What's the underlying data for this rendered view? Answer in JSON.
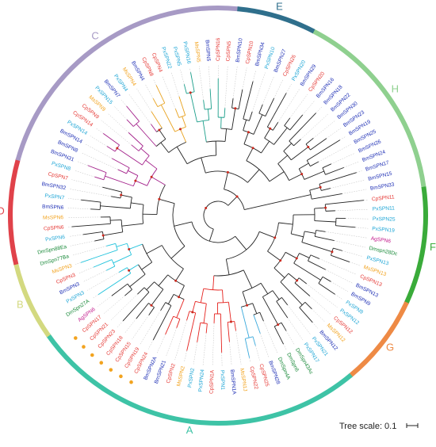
{
  "colors": {
    "Cp": "#e53935",
    "Bm": "#1e2fb5",
    "Ms": "#f2a31f",
    "Px": "#1fa6d6",
    "Dm": "#1a8a3a",
    "Ag": "#c2188a",
    "branch_black": "#222222",
    "branch_teal": "#1a9e8a",
    "branch_orange": "#e8a21f",
    "branch_magenta": "#a3208a",
    "branch_cyan": "#21c3dc",
    "branch_red": "#e5221e",
    "branch_sky": "#3aa9dc",
    "node_marker": "#cc2a1f",
    "guide_line": "#bcbcbc",
    "highlight_dot": "#f2a31f"
  },
  "tree": {
    "leaves": [
      {
        "label": "CpSPN11",
        "sp": "Cp"
      },
      {
        "label": "PxSPN11",
        "sp": "Px"
      },
      {
        "label": "PxSPN25",
        "sp": "Px"
      },
      {
        "label": "PxSPN19",
        "sp": "Px"
      },
      {
        "label": "AgSPN6",
        "sp": "Ag"
      },
      {
        "label": "Dmspn28Dc",
        "sp": "Dm"
      },
      {
        "label": "PxSPN13",
        "sp": "Px"
      },
      {
        "label": "MsSPN13",
        "sp": "Ms"
      },
      {
        "label": "CpSPN13",
        "sp": "Cp"
      },
      {
        "label": "BmSPN13",
        "sp": "Bm"
      },
      {
        "label": "BmSPN9",
        "sp": "Bm"
      },
      {
        "label": "PxSPN9",
        "sp": "Px"
      },
      {
        "label": "PxSPN12",
        "sp": "Px"
      },
      {
        "label": "CpSPN12",
        "sp": "Cp"
      },
      {
        "label": "MsSPN12",
        "sp": "Ms"
      },
      {
        "label": "BmSPN12",
        "sp": "Bm"
      },
      {
        "label": "PxSPN21",
        "sp": "Px"
      },
      {
        "label": "PxSPN17",
        "sp": "Px"
      },
      {
        "label": "DmSpn43Ac",
        "sp": "Dm"
      },
      {
        "label": "DmSpn6",
        "sp": "Dm"
      },
      {
        "label": "DmSpn4A",
        "sp": "Dm"
      },
      {
        "label": "BmSPN28",
        "sp": "Bm"
      },
      {
        "label": "CpSPN25",
        "sp": "Cp"
      },
      {
        "label": "CpSPN22",
        "sp": "Cp"
      },
      {
        "label": "MsSPN1J",
        "sp": "Ms"
      },
      {
        "label": "BmSPN1A",
        "sp": "Bm"
      },
      {
        "label": "PxSPN1",
        "sp": "Px"
      },
      {
        "label": "CpSPN1A",
        "sp": "Cp"
      },
      {
        "label": "PxSPN24",
        "sp": "Px"
      },
      {
        "label": "PxSPN2",
        "sp": "Px"
      },
      {
        "label": "MsSPN2",
        "sp": "Ms"
      },
      {
        "label": "CpSPN2",
        "sp": "Cp"
      },
      {
        "label": "BmSPN21",
        "sp": "Bm"
      },
      {
        "label": "BmSPN2A",
        "sp": "Bm"
      },
      {
        "label": "CpSPN24",
        "sp": "Cp",
        "dot": true
      },
      {
        "label": "CpSPN19",
        "sp": "Cp",
        "dot": true
      },
      {
        "label": "CpSPN15",
        "sp": "Cp",
        "dot": true
      },
      {
        "label": "CpSPN18",
        "sp": "Cp",
        "dot": true
      },
      {
        "label": "CpSPN23",
        "sp": "Cp",
        "dot": true
      },
      {
        "label": "CpSPN21",
        "sp": "Cp",
        "dot": true
      },
      {
        "label": "CpSPN17",
        "sp": "Cp",
        "dot": true
      },
      {
        "label": "AgSPN6",
        "sp": "Ag"
      },
      {
        "label": "DmSpn27A",
        "sp": "Dm"
      },
      {
        "label": "PxSPN3",
        "sp": "Px"
      },
      {
        "label": "BmSPN3",
        "sp": "Bm"
      },
      {
        "label": "CpSPN3",
        "sp": "Cp"
      },
      {
        "label": "MsSPN3",
        "sp": "Ms"
      },
      {
        "label": "DmSpn77Ba",
        "sp": "Dm"
      },
      {
        "label": "DmSpn88Ea",
        "sp": "Dm"
      },
      {
        "label": "PxSPN6",
        "sp": "Px"
      },
      {
        "label": "CpSPN6",
        "sp": "Cp"
      },
      {
        "label": "MsSPN6",
        "sp": "Ms"
      },
      {
        "label": "BmSPN6",
        "sp": "Bm"
      },
      {
        "label": "PxSPN7",
        "sp": "Px"
      },
      {
        "label": "BmSPN32",
        "sp": "Bm"
      },
      {
        "label": "CpSPN7",
        "sp": "Cp"
      },
      {
        "label": "PxSPN8",
        "sp": "Px"
      },
      {
        "label": "BmSPN31",
        "sp": "Bm"
      },
      {
        "label": "BmSPN8",
        "sp": "Bm"
      },
      {
        "label": "BmSPN14",
        "sp": "Bm"
      },
      {
        "label": "PxSPN14",
        "sp": "Px"
      },
      {
        "label": "CpSPN14",
        "sp": "Cp"
      },
      {
        "label": "CpSPN9",
        "sp": "Cp"
      },
      {
        "label": "MsSPN9",
        "sp": "Ms"
      },
      {
        "label": "PxSPN15",
        "sp": "Px"
      },
      {
        "label": "BmSPN7",
        "sp": "Bm"
      },
      {
        "label": "PxSPN4",
        "sp": "Px"
      },
      {
        "label": "MsSPN4",
        "sp": "Ms"
      },
      {
        "label": "BmSPN4",
        "sp": "Bm"
      },
      {
        "label": "CpSPN8",
        "sp": "Cp"
      },
      {
        "label": "CpSPN4",
        "sp": "Cp"
      },
      {
        "label": "PxSPN22",
        "sp": "Px"
      },
      {
        "label": "PxSPN5",
        "sp": "Px"
      },
      {
        "label": "PxSPN16",
        "sp": "Px"
      },
      {
        "label": "MsSPN5",
        "sp": "Ms"
      },
      {
        "label": "BmSPN5",
        "sp": "Bm"
      },
      {
        "label": "CpSPN16",
        "sp": "Cp"
      },
      {
        "label": "CpSPN5",
        "sp": "Cp"
      },
      {
        "label": "BmSPN10",
        "sp": "Bm"
      },
      {
        "label": "CpSPN10",
        "sp": "Cp"
      },
      {
        "label": "BmSPN34",
        "sp": "Bm"
      },
      {
        "label": "PxSPN10",
        "sp": "Px"
      },
      {
        "label": "BmSPN27",
        "sp": "Bm"
      },
      {
        "label": "CpSPN26",
        "sp": "Cp"
      },
      {
        "label": "PxSPN20",
        "sp": "Px"
      },
      {
        "label": "BmSPN29",
        "sp": "Bm"
      },
      {
        "label": "CpSPN20",
        "sp": "Cp"
      },
      {
        "label": "BmSPN16",
        "sp": "Bm"
      },
      {
        "label": "BmSPN18",
        "sp": "Bm"
      },
      {
        "label": "BmSPN22",
        "sp": "Bm"
      },
      {
        "label": "BmSPN30",
        "sp": "Bm"
      },
      {
        "label": "BmSPN23",
        "sp": "Bm"
      },
      {
        "label": "BmSPN19",
        "sp": "Bm"
      },
      {
        "label": "BmSPN25",
        "sp": "Bm"
      },
      {
        "label": "BmSPN26",
        "sp": "Bm"
      },
      {
        "label": "BmSPN24",
        "sp": "Bm"
      },
      {
        "label": "BmSPN17",
        "sp": "Bm"
      },
      {
        "label": "BmSPN15",
        "sp": "Bm"
      },
      {
        "label": "BmSPN33",
        "sp": "Bm"
      }
    ]
  },
  "clades": [
    {
      "label": "H",
      "color": "#8fd08f",
      "from": 84,
      "to": 98
    },
    {
      "label": "F",
      "color": "#3aab3a",
      "from": 0,
      "to": 8
    },
    {
      "label": "G",
      "color": "#ee8a45",
      "from": 9,
      "to": 15
    },
    {
      "label": "A",
      "color": "#3ec3a6",
      "from": 16,
      "to": 41
    },
    {
      "label": "B",
      "color": "#d3d980",
      "from": 42,
      "to": 47
    },
    {
      "label": "D",
      "color": "#e0424a",
      "from": 48,
      "to": 55
    },
    {
      "label": "C",
      "color": "#a79ac5",
      "from": 56,
      "to": 77
    },
    {
      "label": "E",
      "color": "#2f6f8c",
      "from": 78,
      "to": 83
    }
  ],
  "scale_bar": {
    "label": "Tree scale: 0.1"
  }
}
